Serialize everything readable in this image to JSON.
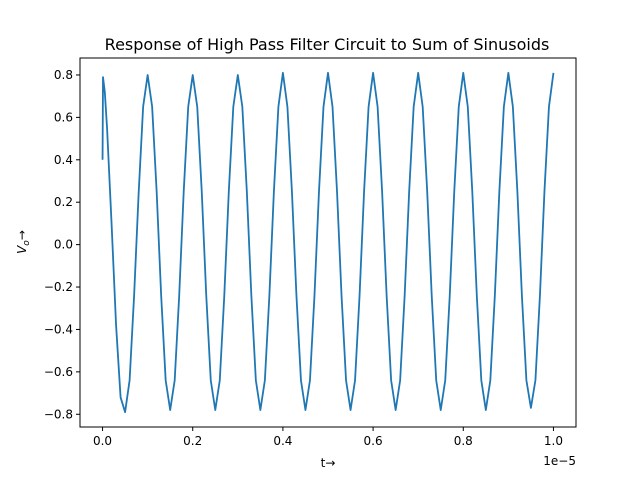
{
  "chart_data": {
    "type": "line",
    "title": "Response of High Pass Filter Circuit to Sum of Sinusoids",
    "xlabel": "t→",
    "ylabel_main": "V",
    "ylabel_sub": "o",
    "ylabel_arrow": "→",
    "x_offset_label": "1e−5",
    "xlim": [
      -5e-07,
      1.05e-05
    ],
    "ylim": [
      -0.86,
      0.88
    ],
    "xticks": [
      0.0,
      2e-06,
      4e-06,
      6e-06,
      8e-06,
      1e-05
    ],
    "xtick_labels": [
      "0.0",
      "0.2",
      "0.4",
      "0.6",
      "0.8",
      "1.0"
    ],
    "yticks": [
      -0.8,
      -0.6,
      -0.4,
      -0.2,
      0.0,
      0.2,
      0.4,
      0.6,
      0.8
    ],
    "ytick_labels": [
      "−0.8",
      "−0.6",
      "−0.4",
      "−0.2",
      "0.0",
      "0.2",
      "0.4",
      "0.6",
      "0.8"
    ],
    "grid": false,
    "series": [
      {
        "color": "#1f77b4",
        "x": [
          0.0,
          1e-08,
          5e-08,
          1e-07,
          2e-07,
          3e-07,
          4e-07,
          5e-07,
          6e-07,
          7e-07,
          8e-07,
          9e-07,
          1e-06,
          1.1e-06,
          1.2e-06,
          1.3e-06,
          1.4e-06,
          1.5e-06,
          1.6e-06,
          1.7e-06,
          1.8e-06,
          1.9e-06,
          2e-06,
          2.1e-06,
          2.2e-06,
          2.3e-06,
          2.4e-06,
          2.5e-06,
          2.6e-06,
          2.7e-06,
          2.8e-06,
          2.9e-06,
          3e-06,
          3.1e-06,
          3.2e-06,
          3.3e-06,
          3.4e-06,
          3.5e-06,
          3.6e-06,
          3.7e-06,
          3.8e-06,
          3.9e-06,
          4e-06,
          4.1e-06,
          4.2e-06,
          4.3e-06,
          4.4e-06,
          4.5e-06,
          4.6e-06,
          4.7e-06,
          4.8e-06,
          4.9e-06,
          5e-06,
          5.1e-06,
          5.2e-06,
          5.3e-06,
          5.4e-06,
          5.5e-06,
          5.6e-06,
          5.7e-06,
          5.8e-06,
          5.9e-06,
          6e-06,
          6.1e-06,
          6.2e-06,
          6.3e-06,
          6.4e-06,
          6.5e-06,
          6.6e-06,
          6.7e-06,
          6.8e-06,
          6.9e-06,
          7e-06,
          7.1e-06,
          7.2e-06,
          7.3e-06,
          7.4e-06,
          7.5e-06,
          7.6e-06,
          7.7e-06,
          7.8e-06,
          7.9e-06,
          8e-06,
          8.1e-06,
          8.2e-06,
          8.3e-06,
          8.4e-06,
          8.5e-06,
          8.6e-06,
          8.7e-06,
          8.8e-06,
          8.9e-06,
          9e-06,
          9.1e-06,
          9.2e-06,
          9.3e-06,
          9.4e-06,
          9.5e-06,
          9.6e-06,
          9.7e-06,
          9.8e-06,
          9.9e-06,
          1e-05
        ],
        "y": [
          0.4,
          0.79,
          0.72,
          0.55,
          0.1,
          -0.38,
          -0.72,
          -0.79,
          -0.64,
          -0.24,
          0.24,
          0.65,
          0.8,
          0.65,
          0.25,
          -0.24,
          -0.64,
          -0.78,
          -0.64,
          -0.24,
          0.25,
          0.65,
          0.8,
          0.65,
          0.25,
          -0.24,
          -0.64,
          -0.78,
          -0.64,
          -0.24,
          0.25,
          0.65,
          0.8,
          0.65,
          0.25,
          -0.24,
          -0.64,
          -0.78,
          -0.64,
          -0.24,
          0.25,
          0.65,
          0.81,
          0.65,
          0.25,
          -0.24,
          -0.64,
          -0.78,
          -0.64,
          -0.24,
          0.25,
          0.65,
          0.81,
          0.65,
          0.25,
          -0.24,
          -0.64,
          -0.78,
          -0.64,
          -0.24,
          0.25,
          0.65,
          0.81,
          0.65,
          0.25,
          -0.24,
          -0.64,
          -0.78,
          -0.64,
          -0.24,
          0.25,
          0.65,
          0.81,
          0.65,
          0.25,
          -0.24,
          -0.64,
          -0.78,
          -0.64,
          -0.24,
          0.25,
          0.65,
          0.81,
          0.65,
          0.25,
          -0.24,
          -0.64,
          -0.78,
          -0.64,
          -0.24,
          0.25,
          0.65,
          0.81,
          0.65,
          0.25,
          -0.24,
          -0.64,
          -0.77,
          -0.64,
          -0.24,
          0.25,
          0.65,
          0.81
        ]
      }
    ]
  }
}
